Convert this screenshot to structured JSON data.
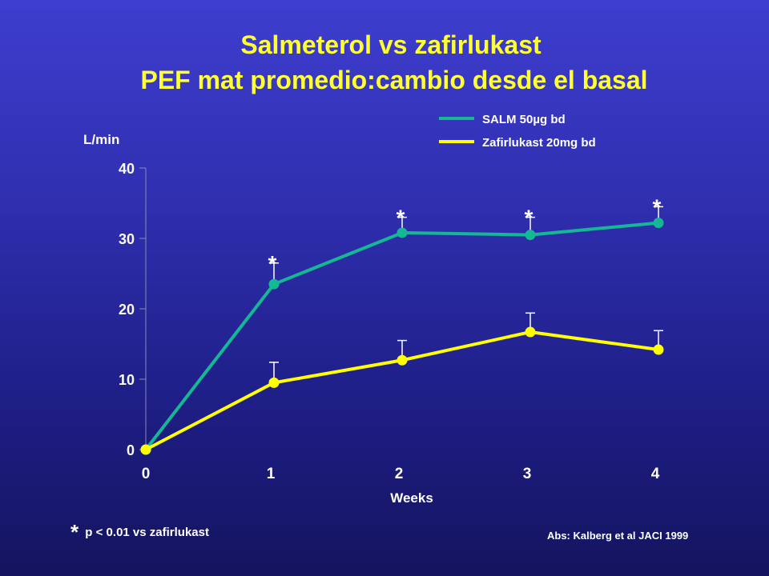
{
  "title_line1": "Salmeterol vs zafirlukast",
  "title_line2": "PEF  mat promedio:cambio desde el basal",
  "footnote_star": "*",
  "footnote_text": "p < 0.01 vs zafirlukast",
  "source": "Abs: Kalberg et al JACI 1999",
  "chart_data": {
    "type": "line",
    "ylabel": "L/min",
    "xlabel": "Weeks",
    "x": [
      0,
      1,
      2,
      3,
      4
    ],
    "xticks": [
      "0",
      "1",
      "2",
      "3",
      "4"
    ],
    "yticks": [
      "0",
      "10",
      "20",
      "30",
      "40"
    ],
    "ylim": [
      0,
      40
    ],
    "xlim": [
      0,
      4
    ],
    "grid": false,
    "legend_position": "top-right",
    "series": [
      {
        "name": "SALM 50µg bd",
        "color": "#14b894",
        "values": [
          0,
          23.5,
          30.8,
          30.5,
          32.2
        ],
        "error_upper": [
          null,
          26.5,
          33.0,
          33.0,
          34.5
        ],
        "significance": [
          null,
          "*",
          "*",
          "*",
          "*"
        ]
      },
      {
        "name": "Zafirlukast 20mg bd",
        "color": "#ffff00",
        "values": [
          0,
          9.5,
          12.7,
          16.7,
          14.2
        ],
        "error_upper": [
          null,
          12.4,
          15.5,
          19.4,
          16.9
        ],
        "significance": [
          null,
          null,
          null,
          null,
          null
        ]
      }
    ]
  }
}
